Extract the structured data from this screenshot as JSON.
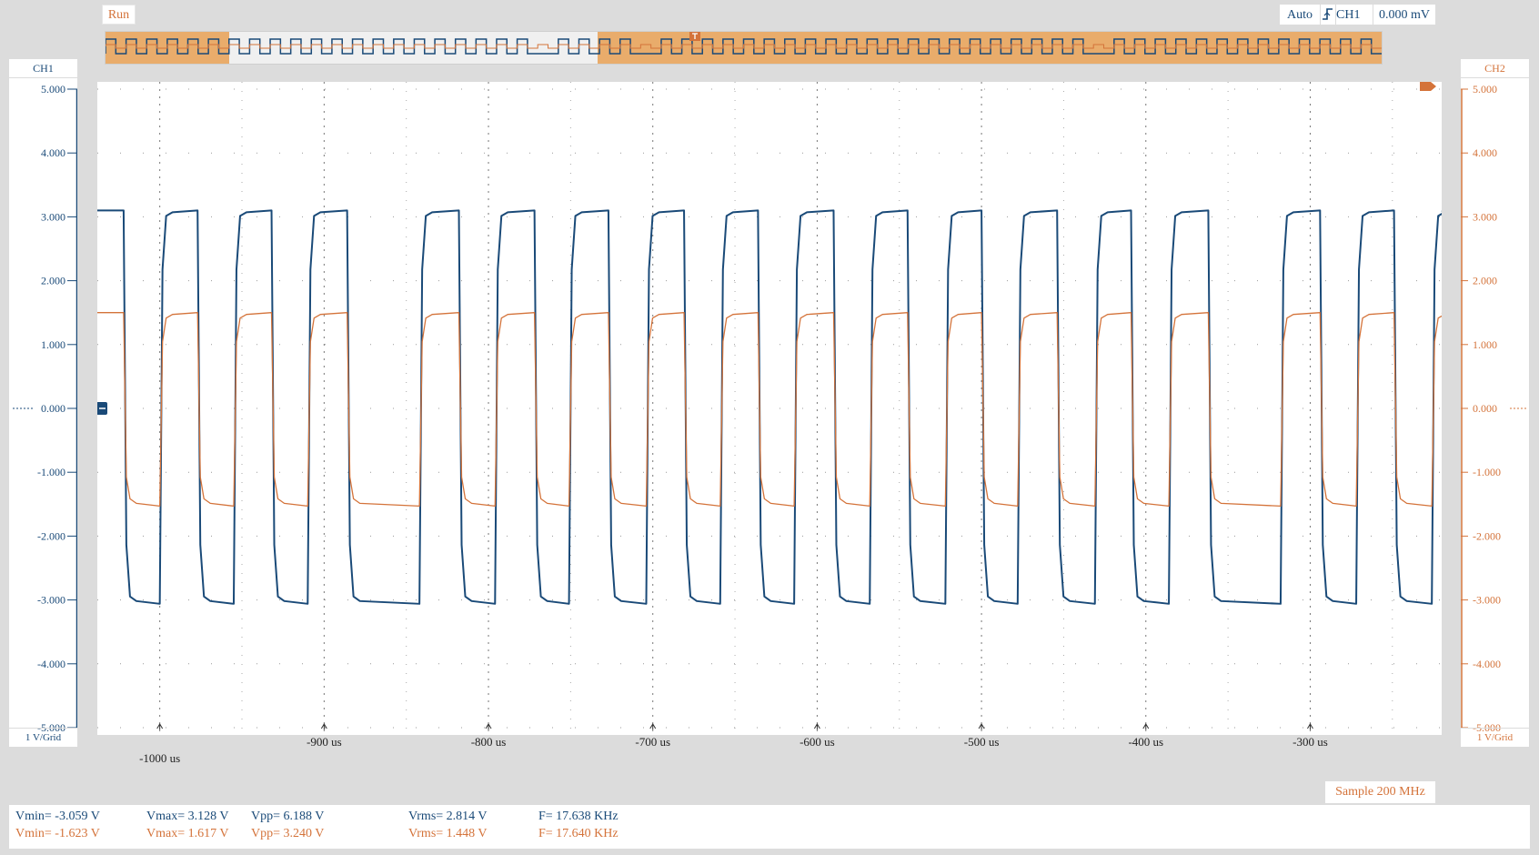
{
  "toolbar": {
    "run_label": "Run",
    "trigger_mode": "Auto",
    "trigger_icon": "rising-edge-icon",
    "trigger_source": "CH1",
    "trigger_level": "0.000 mV"
  },
  "channels": {
    "ch1": {
      "label": "CH1",
      "scale": "1 V/Grid",
      "color": "#1a4a78"
    },
    "ch2": {
      "label": "CH2",
      "scale": "1 V/Grid",
      "color": "#d4733a"
    }
  },
  "sample_rate": "Sample 200 MHz",
  "measurements": {
    "ch1": {
      "vmin": "Vmin= -3.059 V",
      "vmax": "Vmax= 3.128 V",
      "vpp": "Vpp= 6.188 V",
      "vrms": "Vrms= 2.814 V",
      "freq": "F= 17.638 KHz"
    },
    "ch2": {
      "vmin": "Vmin= -1.623 V",
      "vmax": "Vmax= 1.617 V",
      "vpp": "Vpp= 3.240 V",
      "vrms": "Vrms= 1.448 V",
      "freq": "F= 17.640 KHz"
    }
  },
  "chart_data": {
    "type": "line",
    "ylim": [
      -5,
      5
    ],
    "xlim": [
      -1038,
      -220
    ],
    "y_ticks": [
      "5.000",
      "4.000",
      "3.000",
      "2.000",
      "1.000",
      "0.000",
      "-1.000",
      "-2.000",
      "-3.000",
      "-4.000",
      "-5.000"
    ],
    "y_tick_values": [
      5,
      4,
      3,
      2,
      1,
      0,
      -1,
      -2,
      -3,
      -4,
      -5
    ],
    "x_ticks": [
      {
        "value": -1000,
        "label": "-1000 us"
      },
      {
        "value": -900,
        "label": "-900 us"
      },
      {
        "value": -800,
        "label": "-800 us"
      },
      {
        "value": -700,
        "label": "-700 us"
      },
      {
        "value": -600,
        "label": "-600 us"
      },
      {
        "value": -500,
        "label": "-500 us"
      },
      {
        "value": -400,
        "label": "-400 us"
      },
      {
        "value": -300,
        "label": "-300 us"
      }
    ],
    "grid": true,
    "series": [
      {
        "name": "CH1",
        "high": 3.1,
        "low": -3.06,
        "high_segments": [
          [
            -1038,
            -1022
          ],
          [
            -1000,
            -977
          ],
          [
            -955,
            -932
          ],
          [
            -910,
            -886
          ],
          [
            -842,
            -818
          ],
          [
            -796,
            -772
          ],
          [
            -751,
            -727
          ],
          [
            -704,
            -681
          ],
          [
            -659,
            -636
          ],
          [
            -614,
            -590
          ],
          [
            -568,
            -545
          ],
          [
            -522,
            -500
          ],
          [
            -478,
            -454
          ],
          [
            -431,
            -409
          ],
          [
            -386,
            -362
          ],
          [
            -318,
            -294
          ],
          [
            -272,
            -249
          ],
          [
            -226,
            -220
          ]
        ]
      },
      {
        "name": "CH2",
        "high": 1.5,
        "low": -1.53,
        "high_segments": [
          [
            -1038,
            -1022
          ],
          [
            -1000,
            -977
          ],
          [
            -955,
            -932
          ],
          [
            -910,
            -886
          ],
          [
            -842,
            -818
          ],
          [
            -796,
            -772
          ],
          [
            -751,
            -727
          ],
          [
            -704,
            -681
          ],
          [
            -659,
            -636
          ],
          [
            -614,
            -590
          ],
          [
            -568,
            -545
          ],
          [
            -522,
            -500
          ],
          [
            -478,
            -454
          ],
          [
            -431,
            -409
          ],
          [
            -386,
            -362
          ],
          [
            -318,
            -294
          ],
          [
            -272,
            -249
          ],
          [
            -226,
            -220
          ]
        ]
      }
    ]
  }
}
